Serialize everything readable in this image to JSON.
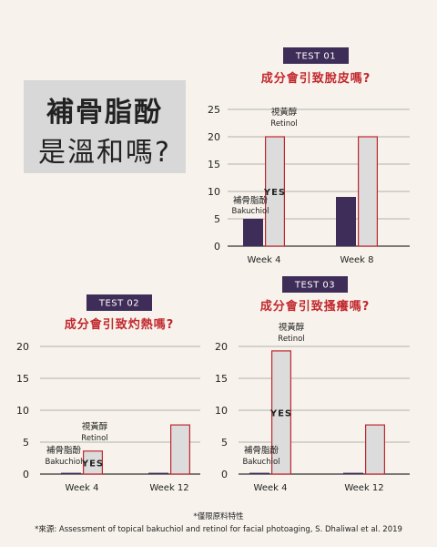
{
  "headline": {
    "line1": "補骨脂酚",
    "line2": "是溫和嗎?"
  },
  "colors": {
    "bakuchiol": "#3f2d59",
    "retinol_fill": "#dcdcdc",
    "retinol_stroke": "#c0262d",
    "accent": "#c2272d",
    "badge": "#3f2d59"
  },
  "chart_data": [
    {
      "type": "bar",
      "badge": "TEST 01",
      "title": "成分會引致脫皮嗎?",
      "categories": [
        "Week 4",
        "Week 8"
      ],
      "series": [
        {
          "name": "補骨脂酚 Bakuchiol",
          "values": [
            5,
            9
          ]
        },
        {
          "name": "視黃醇 Retinol",
          "values": [
            20,
            20
          ]
        }
      ],
      "yticks": [
        0,
        5,
        10,
        15,
        20,
        25
      ],
      "ylim": [
        0,
        25
      ],
      "annotations": {
        "bakuchiol_zh": "補骨脂酚",
        "bakuchiol_en": "Bakuchiol",
        "retinol_zh": "視黃醇",
        "retinol_en": "Retinol",
        "yes": "YES"
      }
    },
    {
      "type": "bar",
      "badge": "TEST 02",
      "title": "成分會引致灼熱嗎?",
      "categories": [
        "Week 4",
        "Week 12"
      ],
      "series": [
        {
          "name": "補骨脂酚 Bakuchiol",
          "values": [
            0.2,
            0.2
          ]
        },
        {
          "name": "視黃醇 Retinol",
          "values": [
            3.6,
            7.7
          ]
        }
      ],
      "yticks": [
        0,
        5,
        10,
        15,
        20
      ],
      "ylim": [
        0,
        20
      ],
      "annotations": {
        "bakuchiol_zh": "補骨脂酚",
        "bakuchiol_en": "Bakuchiol",
        "retinol_zh": "視黃醇",
        "retinol_en": "Retinol",
        "yes": "YES"
      }
    },
    {
      "type": "bar",
      "badge": "TEST 03",
      "title": "成分會引致搔癢嗎?",
      "categories": [
        "Week 4",
        "Week 12"
      ],
      "series": [
        {
          "name": "補骨脂酚 Bakuchiol",
          "values": [
            0.2,
            0.2
          ]
        },
        {
          "name": "視黃醇 Retinol",
          "values": [
            19.3,
            7.7
          ]
        }
      ],
      "yticks": [
        0,
        5,
        10,
        15,
        20
      ],
      "ylim": [
        0,
        20
      ],
      "annotations": {
        "bakuchiol_zh": "補骨脂酚",
        "bakuchiol_en": "Bakuchiol",
        "retinol_zh": "視黃醇",
        "retinol_en": "Retinol",
        "yes": "YES"
      }
    }
  ],
  "footnote": {
    "note": "*僅限原料特性",
    "source": "*來源: Assessment of topical bakuchiol and retinol for facial photoaging, S. Dhaliwal et al. 2019"
  }
}
